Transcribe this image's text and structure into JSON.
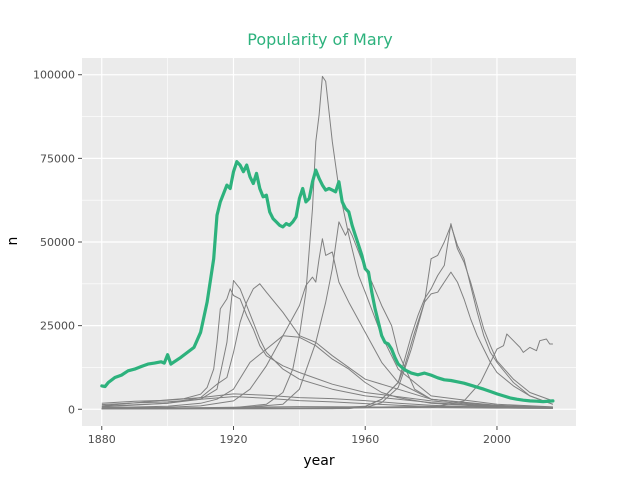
{
  "chart_data": {
    "type": "line",
    "title": "Popularity of Mary",
    "xlabel": "year",
    "ylabel": "n",
    "xlim": [
      1874,
      2024
    ],
    "ylim": [
      -5000,
      105000
    ],
    "x_ticks": [
      1880,
      1920,
      1960,
      2000
    ],
    "x_tick_labels": [
      "1880",
      "1920",
      "1960",
      "2000"
    ],
    "y_ticks": [
      0,
      25000,
      50000,
      75000,
      100000
    ],
    "y_tick_labels": [
      "0",
      "25000",
      "50000",
      "75000",
      "100000"
    ],
    "grid": true,
    "legend": "none",
    "colors": {
      "highlight": "#2db27d",
      "other": "#808080",
      "panel": "#ebebeb",
      "grid": "#ffffff",
      "tick": "#4d4d4d"
    },
    "highlight_series": {
      "x": [
        1880,
        1881,
        1882,
        1884,
        1886,
        1888,
        1890,
        1892,
        1894,
        1896,
        1898,
        1899,
        1900,
        1901,
        1902,
        1904,
        1906,
        1908,
        1910,
        1912,
        1914,
        1915,
        1916,
        1918,
        1919,
        1920,
        1921,
        1922,
        1923,
        1924,
        1925,
        1926,
        1927,
        1928,
        1929,
        1930,
        1931,
        1932,
        1933,
        1934,
        1935,
        1936,
        1937,
        1938,
        1939,
        1940,
        1941,
        1942,
        1943,
        1944,
        1945,
        1946,
        1947,
        1948,
        1949,
        1950,
        1951,
        1952,
        1953,
        1954,
        1955,
        1956,
        1957,
        1958,
        1959,
        1960,
        1961,
        1962,
        1963,
        1964,
        1965,
        1966,
        1967,
        1968,
        1969,
        1970,
        1972,
        1974,
        1976,
        1978,
        1980,
        1982,
        1984,
        1986,
        1988,
        1990,
        1992,
        1994,
        1996,
        1998,
        2000,
        2002,
        2004,
        2006,
        2008,
        2010,
        2012,
        2014,
        2017
      ],
      "y": [
        7000,
        6800,
        8000,
        9500,
        10200,
        11500,
        12000,
        12800,
        13500,
        13800,
        14200,
        13800,
        16300,
        13500,
        14200,
        15500,
        17000,
        18500,
        23000,
        32000,
        45000,
        58000,
        62000,
        67000,
        66000,
        71000,
        74000,
        73000,
        71000,
        73000,
        69500,
        67500,
        70500,
        66000,
        63500,
        64000,
        59000,
        57000,
        56000,
        55000,
        54500,
        55500,
        55000,
        56000,
        57500,
        63000,
        66000,
        62000,
        63000,
        68000,
        71500,
        69000,
        67000,
        65500,
        66000,
        65500,
        65000,
        68000,
        62000,
        60000,
        59000,
        55000,
        52000,
        49000,
        46000,
        42000,
        41000,
        35000,
        30000,
        26000,
        22000,
        20000,
        19500,
        18000,
        15500,
        13500,
        11800,
        10800,
        10300,
        10800,
        10200,
        9400,
        8800,
        8600,
        8200,
        7800,
        7200,
        6600,
        6000,
        5300,
        4600,
        4000,
        3400,
        3000,
        2700,
        2500,
        2400,
        2300,
        2500
      ]
    },
    "other_series": [
      {
        "x": [
          1880,
          1900,
          1905,
          1910,
          1912,
          1914,
          1915,
          1916,
          1918,
          1919,
          1920,
          1922,
          1924,
          1926,
          1928,
          1930,
          1935,
          1940,
          1950,
          1960,
          1980,
          2000,
          2017
        ],
        "y": [
          1000,
          2800,
          3200,
          4500,
          6500,
          12000,
          20000,
          30000,
          33000,
          36000,
          34000,
          33000,
          28000,
          24000,
          19000,
          16000,
          13000,
          11000,
          7500,
          5000,
          2500,
          800,
          400
        ]
      },
      {
        "x": [
          1880,
          1900,
          1910,
          1915,
          1918,
          1920,
          1922,
          1924,
          1926,
          1928,
          1930,
          1935,
          1940,
          1950,
          1960,
          1980,
          2000,
          2017
        ],
        "y": [
          900,
          1800,
          3000,
          6000,
          20000,
          38500,
          36000,
          31000,
          26000,
          21000,
          17000,
          12000,
          9000,
          6000,
          4000,
          2000,
          800,
          400
        ]
      },
      {
        "x": [
          1880,
          1900,
          1910,
          1915,
          1918,
          1920,
          1922,
          1924,
          1926,
          1928,
          1930,
          1935,
          1940,
          1945,
          1950,
          1960,
          1980,
          2000,
          2017
        ],
        "y": [
          700,
          1800,
          3500,
          7500,
          9500,
          17000,
          26000,
          32000,
          36000,
          37500,
          35000,
          29000,
          22000,
          20000,
          16000,
          9000,
          3000,
          1000,
          400
        ]
      },
      {
        "x": [
          1880,
          1900,
          1910,
          1915,
          1920,
          1925,
          1930,
          1935,
          1940,
          1945,
          1950,
          1955,
          1960,
          1965,
          1970,
          1980,
          2000,
          2017
        ],
        "y": [
          500,
          900,
          1800,
          3000,
          6000,
          14000,
          18000,
          22000,
          21500,
          19000,
          15000,
          12000,
          8000,
          5000,
          3500,
          1800,
          600,
          300
        ]
      },
      {
        "x": [
          1880,
          1900,
          1910,
          1920,
          1925,
          1930,
          1935,
          1940,
          1942,
          1944,
          1945,
          1946,
          1947,
          1948,
          1950,
          1952,
          1955,
          1960,
          1965,
          1970,
          1980,
          2000,
          2017
        ],
        "y": [
          400,
          600,
          1000,
          2500,
          6000,
          13000,
          22000,
          31000,
          37000,
          39500,
          38000,
          45000,
          51000,
          46000,
          47000,
          38000,
          32000,
          23000,
          14000,
          8000,
          3000,
          1200,
          600
        ]
      },
      {
        "x": [
          1880,
          1920,
          1930,
          1935,
          1938,
          1940,
          1942,
          1944,
          1945,
          1946,
          1947,
          1948,
          1950,
          1952,
          1955,
          1958,
          1960,
          1965,
          1970,
          1980,
          2000,
          2017
        ],
        "y": [
          300,
          500,
          1500,
          5000,
          12000,
          22000,
          35000,
          60000,
          80000,
          88000,
          99500,
          98000,
          80000,
          66000,
          52000,
          40000,
          35000,
          22000,
          12000,
          4000,
          1500,
          700
        ]
      },
      {
        "x": [
          1880,
          1920,
          1935,
          1940,
          1945,
          1948,
          1950,
          1952,
          1954,
          1955,
          1956,
          1958,
          1960,
          1962,
          1965,
          1968,
          1970,
          1975,
          1980,
          2000,
          2017
        ],
        "y": [
          200,
          300,
          1500,
          6000,
          20000,
          32000,
          42000,
          56000,
          52000,
          54000,
          52000,
          47000,
          42000,
          38000,
          31000,
          25000,
          17000,
          6000,
          3000,
          900,
          300
        ]
      },
      {
        "x": [
          1880,
          1950,
          1960,
          1965,
          1970,
          1972,
          1974,
          1976,
          1978,
          1980,
          1982,
          1984,
          1986,
          1988,
          1990,
          1992,
          1994,
          1996,
          1998,
          2000,
          2005,
          2010,
          2017
        ],
        "y": [
          200,
          400,
          900,
          3000,
          8000,
          15000,
          22000,
          28000,
          33000,
          36000,
          40000,
          43000,
          55500,
          48000,
          44000,
          38000,
          31000,
          24000,
          19000,
          14500,
          9000,
          5000,
          2500
        ]
      },
      {
        "x": [
          1880,
          1950,
          1960,
          1965,
          1970,
          1972,
          1974,
          1976,
          1978,
          1980,
          1982,
          1984,
          1986,
          1988,
          1990,
          1992,
          1994,
          1996,
          1998,
          2000,
          2005,
          2010,
          2017
        ],
        "y": [
          100,
          200,
          500,
          2000,
          6500,
          12000,
          18000,
          25000,
          32000,
          45000,
          46000,
          50000,
          55000,
          49000,
          45000,
          37000,
          29000,
          22000,
          17000,
          14000,
          8000,
          4000,
          1500
        ]
      },
      {
        "x": [
          1880,
          1955,
          1960,
          1965,
          1970,
          1972,
          1975,
          1978,
          1980,
          1982,
          1984,
          1986,
          1988,
          1990,
          1992,
          1994,
          1996,
          1998,
          2000,
          2005,
          2010,
          2017
        ],
        "y": [
          100,
          200,
          800,
          3000,
          8000,
          13000,
          23000,
          32000,
          34500,
          35000,
          38000,
          41000,
          38000,
          33000,
          27000,
          22000,
          18000,
          14000,
          11000,
          7000,
          4000,
          1500
        ]
      },
      {
        "x": [
          1880,
          1980,
          1990,
          1995,
          1998,
          2000,
          2002,
          2003,
          2005,
          2007,
          2008,
          2010,
          2012,
          2013,
          2015,
          2016,
          2017
        ],
        "y": [
          100,
          500,
          2500,
          8000,
          14000,
          18000,
          19000,
          22500,
          20500,
          18500,
          17000,
          18500,
          17500,
          20500,
          21000,
          19500,
          19500
        ]
      },
      {
        "x": [
          1880,
          1890,
          1900,
          1910,
          1920,
          1930,
          1940,
          1950,
          1960,
          1970,
          1980,
          1990,
          2000,
          2010,
          2017
        ],
        "y": [
          1800,
          2400,
          2700,
          3500,
          4600,
          4200,
          3500,
          3200,
          2600,
          1800,
          1200,
          800,
          600,
          500,
          400
        ]
      },
      {
        "x": [
          1880,
          1890,
          1900,
          1910,
          1920,
          1930,
          1940,
          1950,
          1960,
          1970,
          1980,
          1990,
          2000,
          2010,
          2017
        ],
        "y": [
          1400,
          1900,
          2200,
          3000,
          3800,
          3300,
          2600,
          2200,
          1700,
          1200,
          800,
          500,
          400,
          300,
          300
        ]
      },
      {
        "x": [
          1880,
          1900,
          1920,
          1940,
          1960,
          1980,
          2000,
          2017
        ],
        "y": [
          250,
          350,
          600,
          800,
          700,
          500,
          350,
          250
        ]
      },
      {
        "x": [
          1880,
          1900,
          1920,
          1940,
          1960,
          1980,
          2000,
          2017
        ],
        "y": [
          100,
          150,
          250,
          400,
          600,
          900,
          700,
          400
        ]
      }
    ]
  }
}
